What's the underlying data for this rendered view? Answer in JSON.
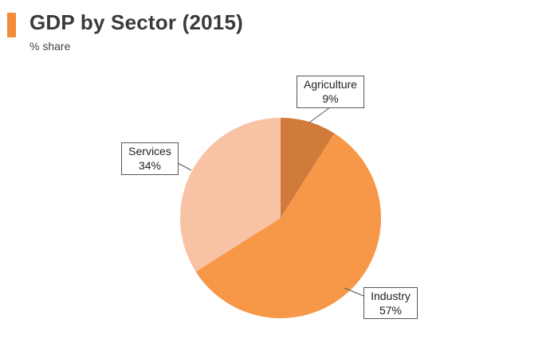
{
  "header": {
    "title": "GDP by Sector (2015)",
    "subtitle": "% share"
  },
  "colors": {
    "accent": "#f28c38",
    "agriculture": "#d07b3a",
    "industry": "#f79748",
    "services": "#f8c2a5"
  },
  "chart_data": {
    "type": "pie",
    "title": "GDP by Sector (2015)",
    "subtitle": "% share",
    "slices": [
      {
        "label": "Agriculture",
        "value": 9,
        "value_label": "9%",
        "color": "#d07b3a"
      },
      {
        "label": "Industry",
        "value": 57,
        "value_label": "57%",
        "color": "#f79748"
      },
      {
        "label": "Services",
        "value": 34,
        "value_label": "34%",
        "color": "#f8c2a5"
      }
    ],
    "start": "12 o'clock",
    "direction": "clockwise",
    "legend": "none",
    "data_labels": "callout boxes"
  }
}
